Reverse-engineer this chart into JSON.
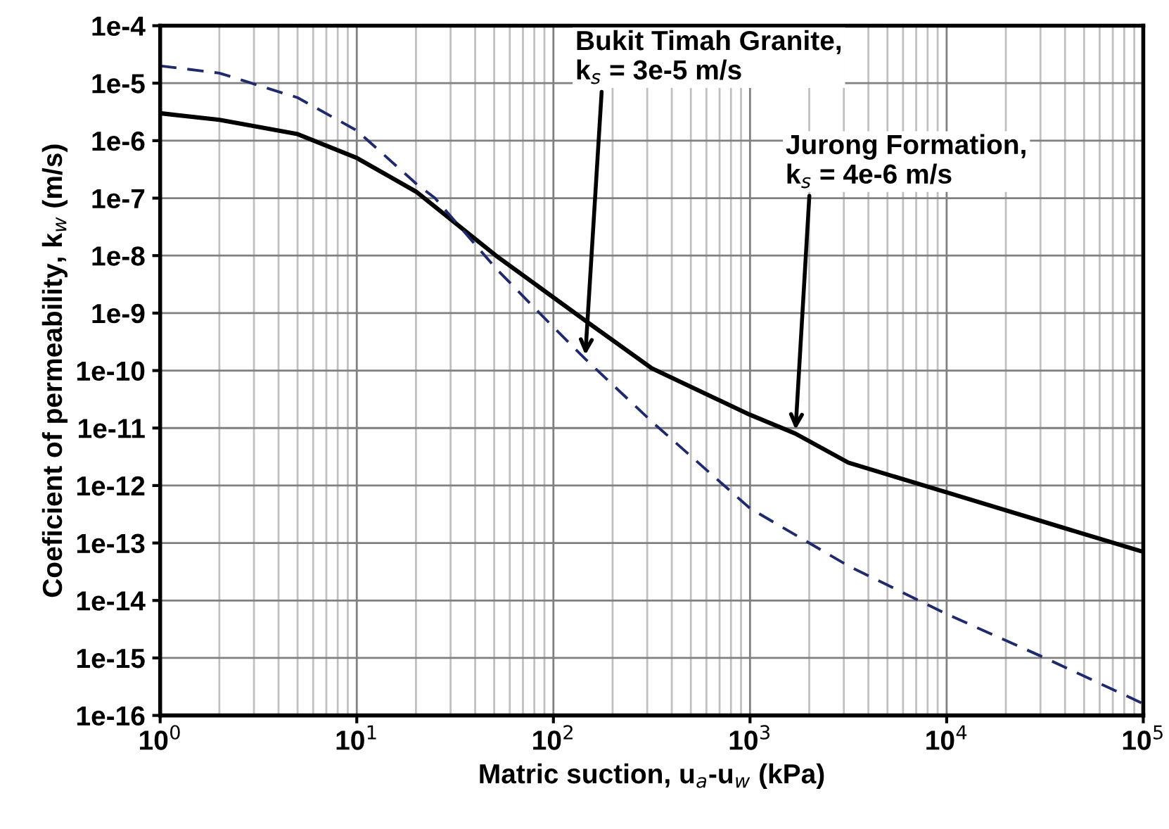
{
  "chart_data": {
    "type": "line",
    "xlabel": "Matric suction, u$_{a}$-u$_{w}$ (kPa)",
    "ylabel": "Coeficient of permeability, k$_{w}$ (m/s)",
    "log": "xy",
    "grid": true,
    "legend": false,
    "marker": "none",
    "xlim": [
      1,
      100000
    ],
    "ylim": [
      1e-16,
      0.0001
    ],
    "xticks": [
      {
        "value": 1,
        "label": "10$^{0}$"
      },
      {
        "value": 10,
        "label": "10$^{1}$"
      },
      {
        "value": 100,
        "label": "10$^{2}$"
      },
      {
        "value": 1000,
        "label": "10$^{3}$"
      },
      {
        "value": 10000,
        "label": "10$^{4}$"
      },
      {
        "value": 100000,
        "label": "10$^{5}$"
      }
    ],
    "yticks": [
      {
        "value": 1e-16,
        "label": "1e-16"
      },
      {
        "value": 1e-15,
        "label": "1e-15"
      },
      {
        "value": 1e-14,
        "label": "1e-14"
      },
      {
        "value": 1e-13,
        "label": "1e-13"
      },
      {
        "value": 1e-12,
        "label": "1e-12"
      },
      {
        "value": 1e-11,
        "label": "1e-11"
      },
      {
        "value": 1e-10,
        "label": "1e-10"
      },
      {
        "value": 1e-09,
        "label": "1e-9"
      },
      {
        "value": 1e-08,
        "label": "1e-8"
      },
      {
        "value": 1e-07,
        "label": "1e-7"
      },
      {
        "value": 1e-06,
        "label": "1e-6"
      },
      {
        "value": 1e-05,
        "label": "1e-5"
      },
      {
        "value": 0.0001,
        "label": "1e-4"
      }
    ],
    "series": [
      {
        "color": "#000000",
        "line_style": "solid",
        "x": [
          1,
          2,
          5,
          10,
          20,
          51,
          155,
          316,
          1000,
          1700,
          3162,
          10000,
          31623,
          100000
        ],
        "values": [
          3e-06,
          2.3e-06,
          1.3e-06,
          5e-07,
          1.3e-07,
          1e-08,
          6.3e-10,
          1.1e-10,
          1.7e-11,
          8e-12,
          2.5e-12,
          7.6e-13,
          2.3e-13,
          7e-14
        ]
      },
      {
        "color": "#1f2a6e",
        "line_style": "dashed",
        "x": [
          1,
          2,
          5,
          10,
          20,
          25,
          51,
          85,
          145,
          316,
          1000,
          3162,
          10000,
          31623,
          100000
        ],
        "values": [
          2e-05,
          1.5e-05,
          5.6e-06,
          1.5e-06,
          1.8e-07,
          1e-07,
          6e-09,
          1e-09,
          1.6e-10,
          1.3e-11,
          4e-13,
          4e-14,
          5.8e-15,
          1e-15,
          1.6e-16
        ]
      }
    ],
    "annotations": [
      {
        "text": "Bukit Timah Granite,\nk$_{s}$ = 3e-5 m/s",
        "x": 145,
        "y": 1.6e-10
      },
      {
        "text": "Jurong Formation,\nk$_{s}$ = 4e-6 m/s",
        "x": 1700,
        "y": 8e-12
      }
    ]
  }
}
